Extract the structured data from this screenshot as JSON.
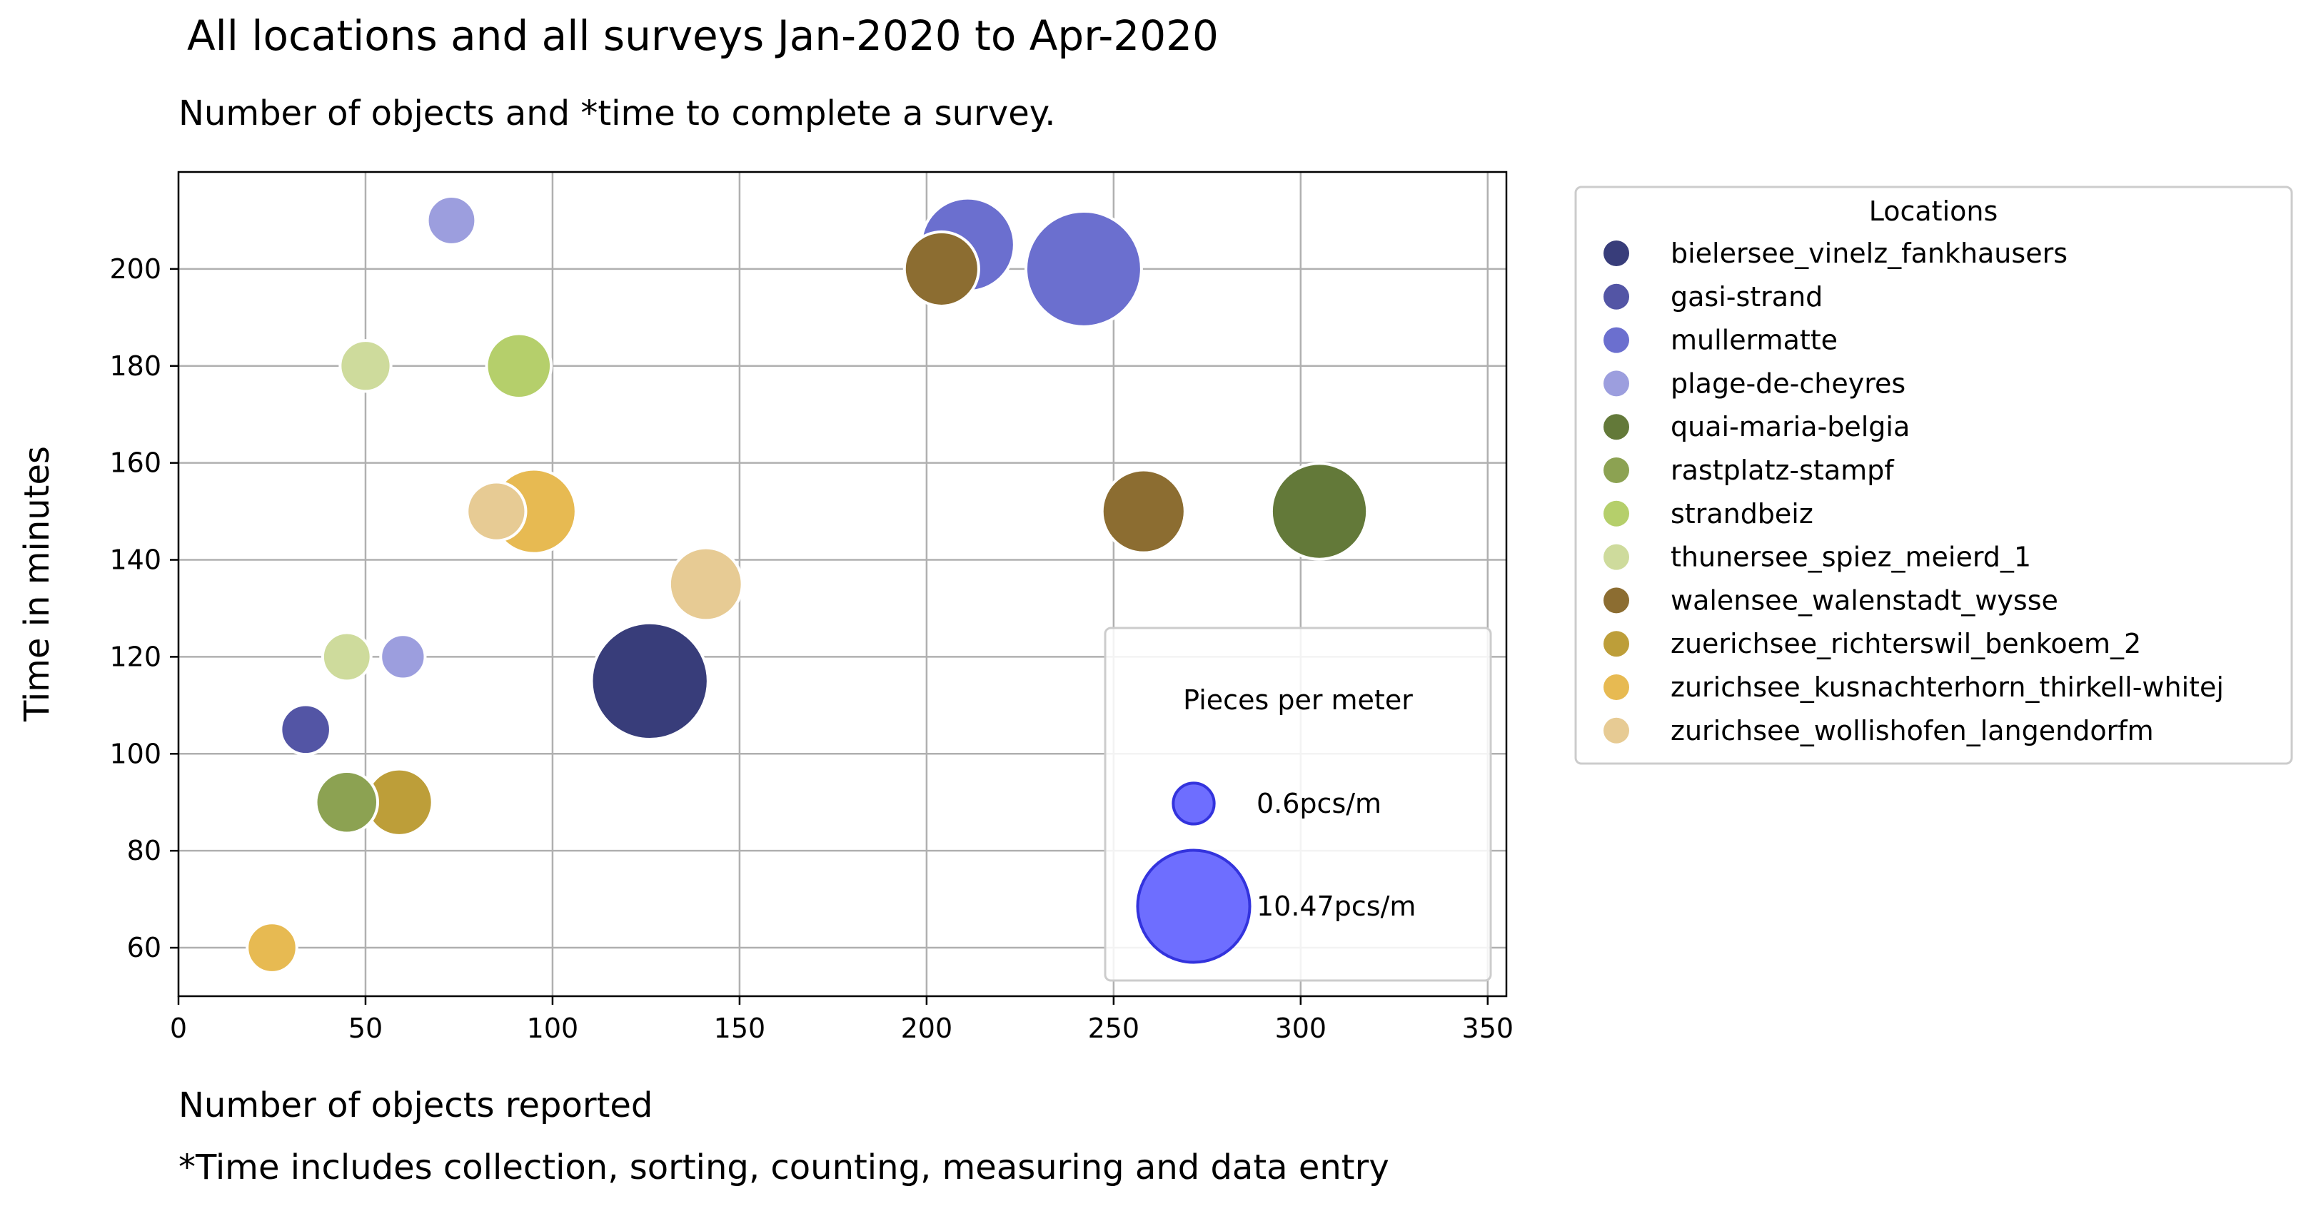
{
  "chart_data": {
    "type": "scatter",
    "title": "All locations and all surveys Jan-2020 to Apr-2020",
    "subtitle": "Number of objects and *time to complete a survey.",
    "xlabel": "Number of objects reported",
    "ylabel": "Time in minutes",
    "footnote": "*Time includes collection, sorting, counting, measuring and data entry",
    "xlim": [
      0,
      355
    ],
    "ylim": [
      50,
      220
    ],
    "xticks": [
      0,
      50,
      100,
      150,
      200,
      250,
      300,
      350
    ],
    "yticks": [
      60,
      80,
      100,
      120,
      140,
      160,
      180,
      200
    ],
    "grid": true,
    "legend": {
      "title": "Locations",
      "placement": "outside-right"
    },
    "size_legend": {
      "title": "Pieces per meter",
      "placement": "lower-right",
      "entries": [
        {
          "label": "0.6pcs/m",
          "value": 0.6
        },
        {
          "label": "10.47pcs/m",
          "value": 10.47
        }
      ],
      "color": "#6666ff"
    },
    "series": [
      {
        "name": "bielersee_vinelz_fankhausers",
        "color": "#383d7a",
        "points": [
          {
            "x": 126,
            "y": 115,
            "pcs_m": 10.2
          }
        ]
      },
      {
        "name": "gasi-strand",
        "color": "#5355a5",
        "points": [
          {
            "x": 34,
            "y": 105,
            "pcs_m": 1.1
          }
        ]
      },
      {
        "name": "mullermatte",
        "color": "#6b6fcf",
        "points": [
          {
            "x": 211,
            "y": 205,
            "pcs_m": 6.2
          },
          {
            "x": 242,
            "y": 200,
            "pcs_m": 10.0
          }
        ]
      },
      {
        "name": "plage-de-cheyres",
        "color": "#9c9ede",
        "points": [
          {
            "x": 73,
            "y": 210,
            "pcs_m": 1.0
          },
          {
            "x": 60,
            "y": 120,
            "pcs_m": 0.7
          }
        ]
      },
      {
        "name": "quai-maria-belgia",
        "color": "#637939",
        "points": [
          {
            "x": 305,
            "y": 150,
            "pcs_m": 6.6
          }
        ]
      },
      {
        "name": "rastplatz-stampf",
        "color": "#8ca252",
        "points": [
          {
            "x": 45,
            "y": 90,
            "pcs_m": 2.2
          }
        ]
      },
      {
        "name": "strandbeiz",
        "color": "#b5cf6b",
        "points": [
          {
            "x": 91,
            "y": 180,
            "pcs_m": 2.5
          }
        ]
      },
      {
        "name": "thunersee_spiez_meierd_1",
        "color": "#cedb9c",
        "points": [
          {
            "x": 50,
            "y": 180,
            "pcs_m": 1.2
          },
          {
            "x": 45,
            "y": 120,
            "pcs_m": 1.0
          }
        ]
      },
      {
        "name": "walensee_walenstadt_wysse",
        "color": "#8c6d31",
        "points": [
          {
            "x": 204,
            "y": 200,
            "pcs_m": 3.6
          },
          {
            "x": 258,
            "y": 150,
            "pcs_m": 4.7
          }
        ]
      },
      {
        "name": "zuerichsee_richterswil_benkoem_2",
        "color": "#bd9e39",
        "points": [
          {
            "x": 59,
            "y": 90,
            "pcs_m": 2.7
          }
        ]
      },
      {
        "name": "zurichsee_kusnachterhorn_thirkell-whitej",
        "color": "#e7ba52",
        "points": [
          {
            "x": 95,
            "y": 150,
            "pcs_m": 4.9
          },
          {
            "x": 25,
            "y": 60,
            "pcs_m": 1.1
          }
        ]
      },
      {
        "name": "zurichsee_wollishofen_langendorfm",
        "color": "#e7cb94",
        "points": [
          {
            "x": 141,
            "y": 135,
            "pcs_m": 3.4
          },
          {
            "x": 85,
            "y": 150,
            "pcs_m": 1.9
          }
        ]
      }
    ]
  }
}
